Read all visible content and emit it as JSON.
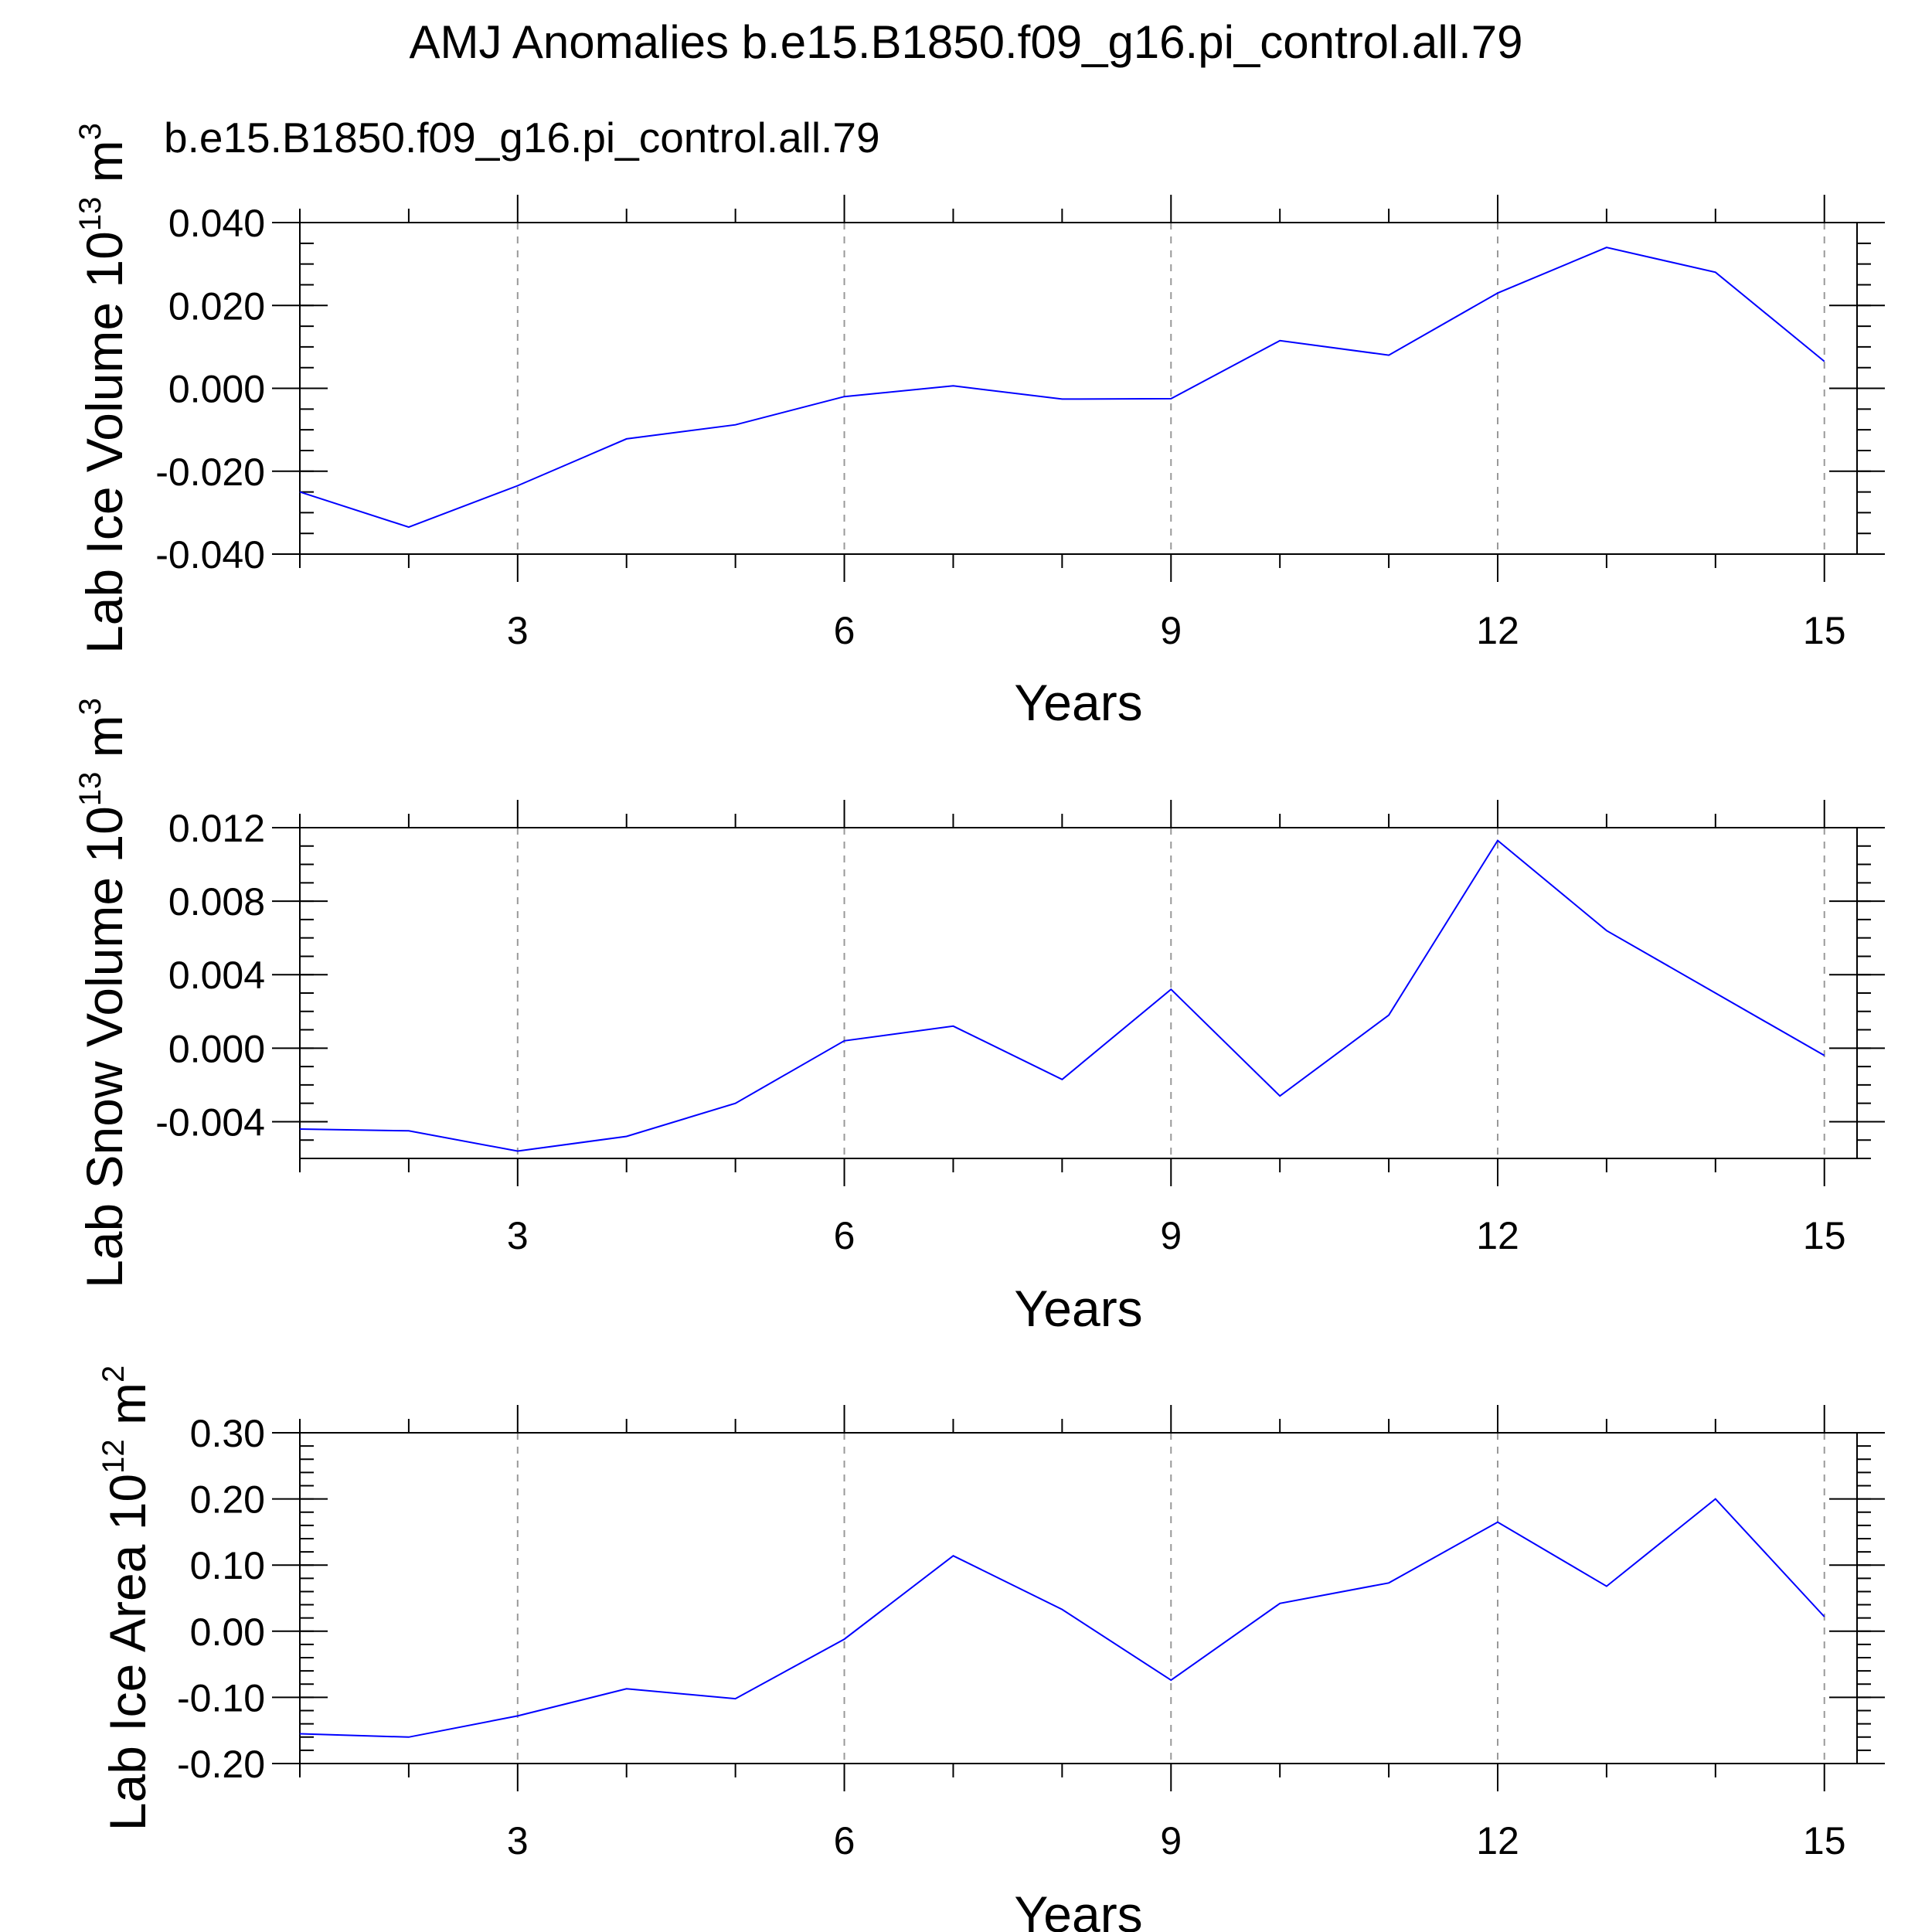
{
  "figure": {
    "title": "AMJ Anomalies b.e15.B1850.f09_g16.pi_control.all.79",
    "case_label": "b.e15.B1850.f09_g16.pi_control.all.79",
    "case_label_color": "#0000ff",
    "line_color": "#0000ff",
    "grid_color": "#999999"
  },
  "chart_data": [
    {
      "type": "line",
      "ylabel": "Lab Ice Volume 10",
      "ylabel_exp": "13",
      "ylabel_unit": "m",
      "ylabel_unit_exp": "3",
      "xlabel": "Years",
      "xlim": [
        1,
        15.3
      ],
      "ylim": [
        -0.04,
        0.04
      ],
      "xticks": [
        3,
        6,
        9,
        12,
        15
      ],
      "yticks": [
        -0.04,
        -0.02,
        0.0,
        0.02,
        0.04
      ],
      "ytick_labels": [
        "-0.040",
        "-0.020",
        "0.000",
        "0.020",
        "0.040"
      ],
      "y_minor_step": 0.005,
      "vertical_grid": true,
      "x": [
        1,
        2,
        3,
        4,
        5,
        6,
        7,
        8,
        9,
        10,
        11,
        12,
        13,
        14,
        15
      ],
      "y": [
        -0.025,
        -0.0335,
        -0.0235,
        -0.0122,
        -0.0088,
        -0.002,
        0.0006,
        -0.0026,
        -0.0025,
        0.0115,
        0.008,
        0.023,
        0.034,
        0.028,
        0.0065
      ]
    },
    {
      "type": "line",
      "ylabel": "Lab Snow Volume 10",
      "ylabel_exp": "13",
      "ylabel_unit": "m",
      "ylabel_unit_exp": "3",
      "xlabel": "Years",
      "xlim": [
        1,
        15.3
      ],
      "ylim": [
        -0.006,
        0.012
      ],
      "xticks": [
        3,
        6,
        9,
        12,
        15
      ],
      "yticks": [
        -0.004,
        0.0,
        0.004,
        0.008,
        0.012
      ],
      "ytick_labels": [
        "-0.004",
        "0.000",
        "0.004",
        "0.008",
        "0.012"
      ],
      "y_minor_step": 0.001,
      "vertical_grid": true,
      "x": [
        1,
        2,
        3,
        4,
        5,
        6,
        7,
        8,
        9,
        10,
        11,
        12,
        13,
        14,
        15
      ],
      "y": [
        -0.0044,
        -0.0045,
        -0.0056,
        -0.0048,
        -0.003,
        0.0004,
        0.0012,
        -0.0017,
        0.0032,
        -0.0026,
        0.0018,
        0.0113,
        0.0064,
        0.003,
        -0.0004
      ]
    },
    {
      "type": "line",
      "ylabel": "Lab Ice Area 10",
      "ylabel_exp": "12",
      "ylabel_unit": "m",
      "ylabel_unit_exp": "2",
      "xlabel": "Years",
      "xlim": [
        1,
        15.3
      ],
      "ylim": [
        -0.2,
        0.3
      ],
      "xticks": [
        3,
        6,
        9,
        12,
        15
      ],
      "yticks": [
        -0.2,
        -0.1,
        0.0,
        0.1,
        0.2,
        0.3
      ],
      "ytick_labels": [
        "-0.20",
        "-0.10",
        "0.00",
        "0.10",
        "0.20",
        "0.30"
      ],
      "y_minor_step": 0.02,
      "vertical_grid": true,
      "x": [
        1,
        2,
        3,
        4,
        5,
        6,
        7,
        8,
        9,
        10,
        11,
        12,
        13,
        14,
        15
      ],
      "y": [
        -0.155,
        -0.16,
        -0.128,
        -0.087,
        -0.102,
        -0.012,
        0.114,
        0.033,
        -0.074,
        0.042,
        0.073,
        0.165,
        0.068,
        0.2,
        0.022
      ]
    }
  ]
}
